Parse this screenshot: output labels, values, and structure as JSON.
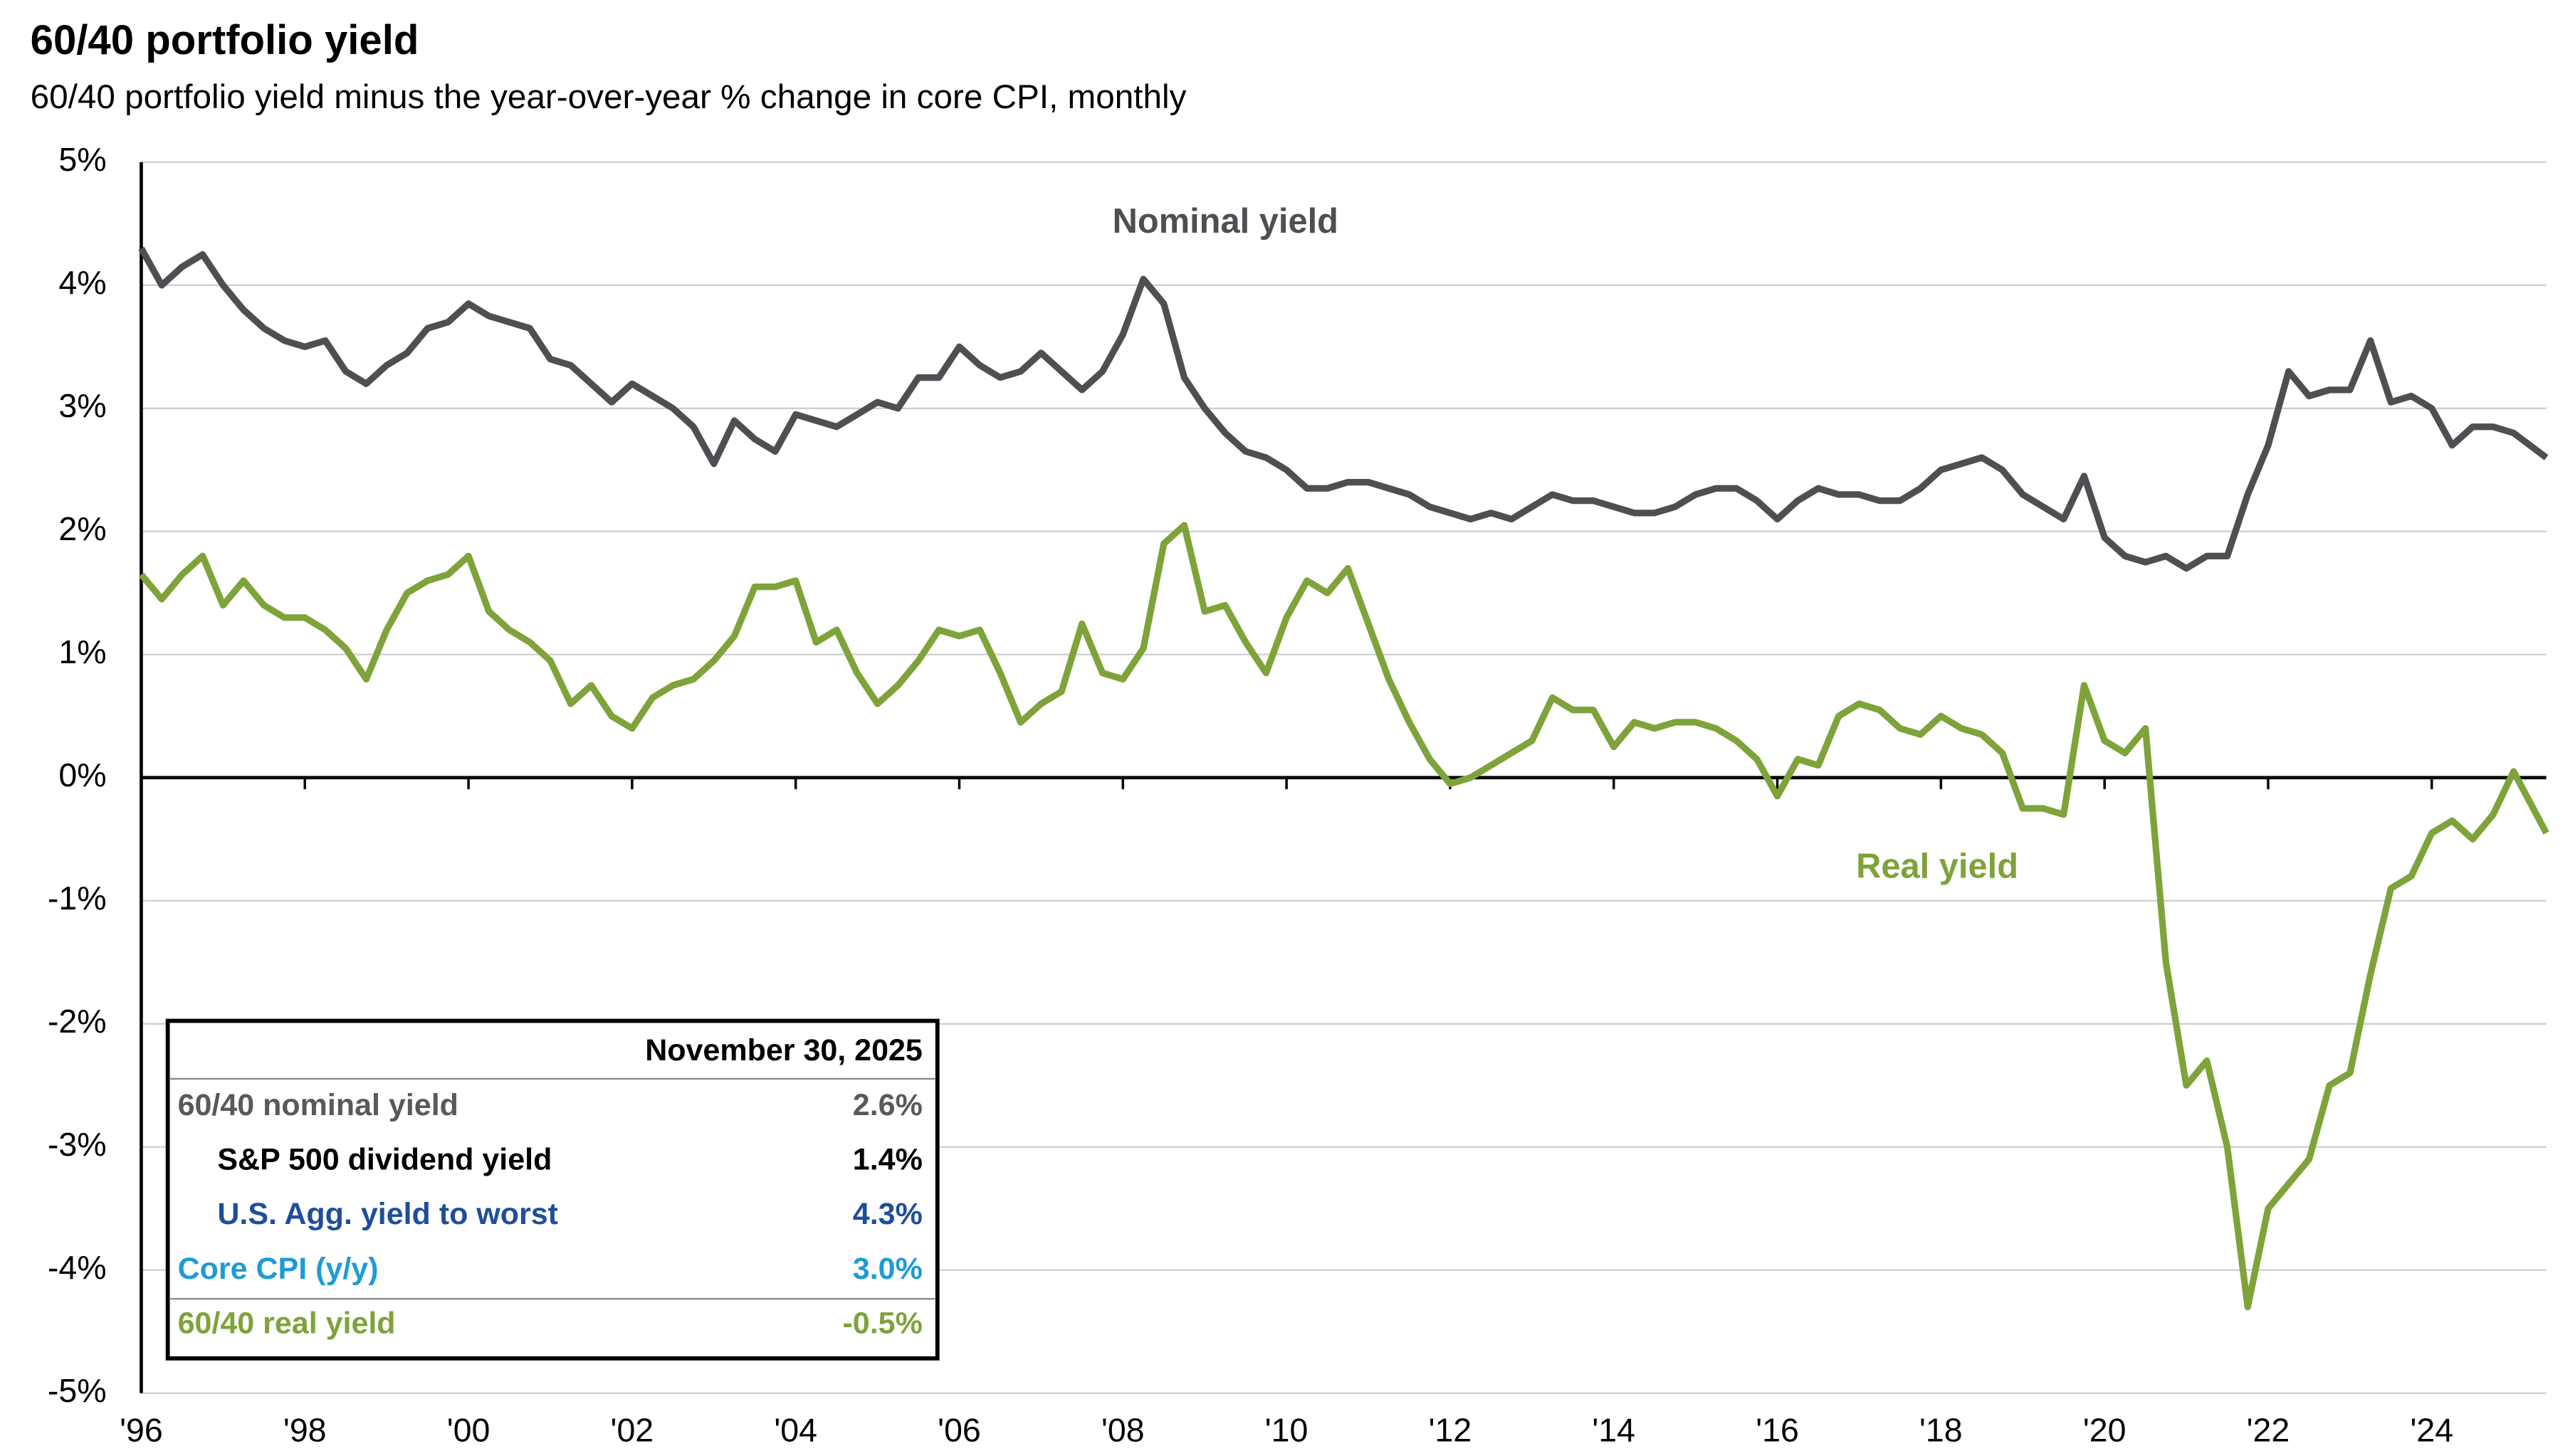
{
  "chart_data": {
    "type": "line",
    "title": "60/40 portfolio yield",
    "subtitle": "60/40 portfolio yield minus the year-over-year % change in core CPI, monthly",
    "annotations": [
      "Nominal yield",
      "Real yield"
    ],
    "x": [
      1996.0,
      1996.25,
      1996.5,
      1996.75,
      1997.0,
      1997.25,
      1997.5,
      1997.75,
      1998.0,
      1998.25,
      1998.5,
      1998.75,
      1999.0,
      1999.25,
      1999.5,
      1999.75,
      2000.0,
      2000.25,
      2000.5,
      2000.75,
      2001.0,
      2001.25,
      2001.5,
      2001.75,
      2002.0,
      2002.25,
      2002.5,
      2002.75,
      2003.0,
      2003.25,
      2003.5,
      2003.75,
      2004.0,
      2004.25,
      2004.5,
      2004.75,
      2005.0,
      2005.25,
      2005.5,
      2005.75,
      2006.0,
      2006.25,
      2006.5,
      2006.75,
      2007.0,
      2007.25,
      2007.5,
      2007.75,
      2008.0,
      2008.25,
      2008.5,
      2008.75,
      2009.0,
      2009.25,
      2009.5,
      2009.75,
      2010.0,
      2010.25,
      2010.5,
      2010.75,
      2011.0,
      2011.25,
      2011.5,
      2011.75,
      2012.0,
      2012.25,
      2012.5,
      2012.75,
      2013.0,
      2013.25,
      2013.5,
      2013.75,
      2014.0,
      2014.25,
      2014.5,
      2014.75,
      2015.0,
      2015.25,
      2015.5,
      2015.75,
      2016.0,
      2016.25,
      2016.5,
      2016.75,
      2017.0,
      2017.25,
      2017.5,
      2017.75,
      2018.0,
      2018.25,
      2018.5,
      2018.75,
      2019.0,
      2019.25,
      2019.5,
      2019.75,
      2020.0,
      2020.25,
      2020.5,
      2020.75,
      2021.0,
      2021.25,
      2021.5,
      2021.75,
      2022.0,
      2022.25,
      2022.5,
      2022.75,
      2023.0,
      2023.25,
      2023.5,
      2023.75,
      2024.0,
      2024.25,
      2024.5,
      2024.75,
      2025.0,
      2025.4
    ],
    "series": [
      {
        "name": "Nominal yield",
        "color": "#4d4f53",
        "values": [
          4.3,
          4.0,
          4.15,
          4.25,
          4.0,
          3.8,
          3.65,
          3.55,
          3.5,
          3.55,
          3.3,
          3.2,
          3.35,
          3.45,
          3.65,
          3.7,
          3.85,
          3.75,
          3.7,
          3.65,
          3.4,
          3.35,
          3.2,
          3.05,
          3.2,
          3.1,
          3.0,
          2.85,
          2.55,
          2.9,
          2.75,
          2.65,
          2.95,
          2.9,
          2.85,
          2.95,
          3.05,
          3.0,
          3.25,
          3.25,
          3.5,
          3.35,
          3.25,
          3.3,
          3.45,
          3.3,
          3.15,
          3.3,
          3.6,
          4.05,
          3.85,
          3.25,
          3.0,
          2.8,
          2.65,
          2.6,
          2.5,
          2.35,
          2.35,
          2.4,
          2.4,
          2.35,
          2.3,
          2.2,
          2.15,
          2.1,
          2.15,
          2.1,
          2.2,
          2.3,
          2.25,
          2.25,
          2.2,
          2.15,
          2.15,
          2.2,
          2.3,
          2.35,
          2.35,
          2.25,
          2.1,
          2.25,
          2.35,
          2.3,
          2.3,
          2.25,
          2.25,
          2.35,
          2.5,
          2.55,
          2.6,
          2.5,
          2.3,
          2.2,
          2.1,
          2.45,
          1.95,
          1.8,
          1.75,
          1.8,
          1.7,
          1.8,
          1.8,
          2.3,
          2.7,
          3.3,
          3.1,
          3.15,
          3.15,
          3.55,
          3.05,
          3.1,
          3.0,
          2.7,
          2.85,
          2.85,
          2.8,
          2.6
        ]
      },
      {
        "name": "Real yield",
        "color": "#7ea33a",
        "values": [
          1.65,
          1.45,
          1.65,
          1.8,
          1.4,
          1.6,
          1.4,
          1.3,
          1.3,
          1.2,
          1.05,
          0.8,
          1.2,
          1.5,
          1.6,
          1.65,
          1.8,
          1.35,
          1.2,
          1.1,
          0.95,
          0.6,
          0.75,
          0.5,
          0.4,
          0.65,
          0.75,
          0.8,
          0.95,
          1.15,
          1.55,
          1.55,
          1.6,
          1.1,
          1.2,
          0.85,
          0.6,
          0.75,
          0.95,
          1.2,
          1.15,
          1.2,
          0.85,
          0.45,
          0.6,
          0.7,
          1.25,
          0.85,
          0.8,
          1.05,
          1.9,
          2.05,
          1.35,
          1.4,
          1.1,
          0.85,
          1.3,
          1.6,
          1.5,
          1.7,
          1.25,
          0.8,
          0.45,
          0.15,
          -0.05,
          0.0,
          0.1,
          0.2,
          0.3,
          0.65,
          0.55,
          0.55,
          0.25,
          0.45,
          0.4,
          0.45,
          0.45,
          0.4,
          0.3,
          0.15,
          -0.15,
          0.15,
          0.1,
          0.5,
          0.6,
          0.55,
          0.4,
          0.35,
          0.5,
          0.4,
          0.35,
          0.2,
          -0.25,
          -0.25,
          -0.3,
          0.75,
          0.3,
          0.2,
          0.4,
          -1.5,
          -2.5,
          -2.3,
          -3.0,
          -4.3,
          -3.5,
          -3.3,
          -3.1,
          -2.5,
          -2.4,
          -1.6,
          -0.9,
          -0.8,
          -0.45,
          -0.35,
          -0.5,
          -0.3,
          0.05,
          -0.45
        ]
      }
    ],
    "xlim": [
      1996,
      2025.4
    ],
    "xticks": [
      {
        "value": 1996,
        "label": "'96"
      },
      {
        "value": 1998,
        "label": "'98"
      },
      {
        "value": 2000,
        "label": "'00"
      },
      {
        "value": 2002,
        "label": "'02"
      },
      {
        "value": 2004,
        "label": "'04"
      },
      {
        "value": 2006,
        "label": "'06"
      },
      {
        "value": 2008,
        "label": "'08"
      },
      {
        "value": 2010,
        "label": "'10"
      },
      {
        "value": 2012,
        "label": "'12"
      },
      {
        "value": 2014,
        "label": "'14"
      },
      {
        "value": 2016,
        "label": "'16"
      },
      {
        "value": 2018,
        "label": "'18"
      },
      {
        "value": 2020,
        "label": "'20"
      },
      {
        "value": 2022,
        "label": "'22"
      },
      {
        "value": 2024,
        "label": "'24"
      }
    ],
    "ylim": [
      -5,
      5
    ],
    "yticks": [
      {
        "value": -5,
        "label": "-5%"
      },
      {
        "value": -4,
        "label": "-4%"
      },
      {
        "value": -3,
        "label": "-3%"
      },
      {
        "value": -2,
        "label": "-2%"
      },
      {
        "value": -1,
        "label": "-1%"
      },
      {
        "value": 0,
        "label": "0%"
      },
      {
        "value": 1,
        "label": "1%"
      },
      {
        "value": 2,
        "label": "2%"
      },
      {
        "value": 3,
        "label": "3%"
      },
      {
        "value": 4,
        "label": "4%"
      },
      {
        "value": 5,
        "label": "5%"
      }
    ],
    "grid": true,
    "table": {
      "header": "November 30, 2025",
      "rows": [
        {
          "label": "60/40 nominal yield",
          "value": "2.6%",
          "color": "#595959"
        },
        {
          "label": "S&P 500 dividend yield",
          "value": "1.4%",
          "color": "#000000"
        },
        {
          "label": "U.S. Agg. yield to worst",
          "value": "4.3%",
          "color": "#1f4e99"
        },
        {
          "label": "Core CPI (y/y)",
          "value": "3.0%",
          "color": "#1e9bd7"
        },
        {
          "label": "60/40 real yield",
          "value": "-0.5%",
          "color": "#7ea33a"
        }
      ]
    }
  }
}
